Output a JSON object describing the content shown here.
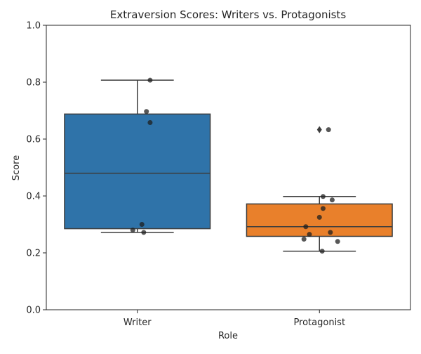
{
  "chart_data": {
    "type": "box",
    "title": "Extraversion Scores: Writers vs. Protagonists",
    "xlabel": "Role",
    "ylabel": "Score",
    "ylim": [
      0,
      1
    ],
    "yticks": [
      0.0,
      0.2,
      0.4,
      0.6,
      0.8,
      1.0
    ],
    "ytick_labels": [
      "0.0",
      "0.2",
      "0.4",
      "0.6",
      "0.8",
      "1.0"
    ],
    "categories": [
      "Writer",
      "Protagonist"
    ],
    "colors": {
      "Writer": "#2f73a9",
      "Protagonist": "#e9802b",
      "box_line": "#3d3d3d",
      "point": "#1f1f1f"
    },
    "boxes": [
      {
        "category": "Writer",
        "q1": 0.285,
        "median": 0.48,
        "q3": 0.688,
        "whisker_low": 0.272,
        "whisker_high": 0.807,
        "outliers": []
      },
      {
        "category": "Protagonist",
        "q1": 0.258,
        "median": 0.292,
        "q3": 0.372,
        "whisker_low": 0.206,
        "whisker_high": 0.398,
        "outliers": [
          0.633
        ]
      }
    ],
    "points": [
      {
        "category": "Writer",
        "values": [
          0.807,
          0.697,
          0.658,
          0.3,
          0.28,
          0.272
        ]
      },
      {
        "category": "Protagonist",
        "values": [
          0.633,
          0.398,
          0.386,
          0.356,
          0.325,
          0.292,
          0.272,
          0.265,
          0.248,
          0.24,
          0.206
        ]
      }
    ]
  }
}
